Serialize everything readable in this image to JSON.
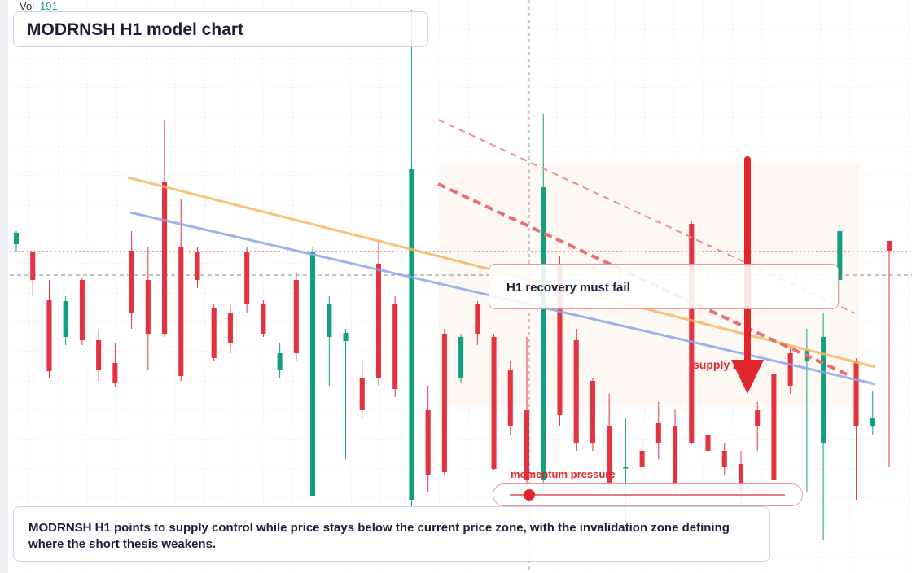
{
  "header": {
    "vol_label": "Vol",
    "vol_value": "191",
    "title": "MODRNSH H1 model chart"
  },
  "chart_data": {
    "type": "candlestick",
    "ylim": [
      0,
      704
    ],
    "up_color": "#129e83",
    "down_color": "#e5323f",
    "open": [
      404,
      394,
      335,
      290,
      360,
      286,
      258,
      396,
      360,
      480,
      400,
      394,
      326,
      320,
      394,
      330,
      250,
      360,
      94,
      290,
      285,
      240,
      380,
      330,
      90,
      200,
      294,
      240,
      330,
      290,
      250,
      200,
      114,
      380,
      286,
      236,
      180,
      130,
      150,
      184,
      180,
      429,
      170,
      150,
      134,
      200,
      244,
      270,
      260,
      160,
      360,
      260,
      180,
      408
    ],
    "close": [
      418,
      360,
      248,
      334,
      286,
      250,
      234,
      320,
      294,
      294,
      242,
      360,
      264,
      282,
      330,
      294,
      270,
      270,
      394,
      330,
      295,
      200,
      240,
      226,
      496,
      120,
      124,
      290,
      294,
      128,
      180,
      114,
      474,
      194,
      160,
      160,
      110,
      130,
      130,
      160,
      110,
      160,
      150,
      130,
      100,
      180,
      114,
      230,
      274,
      290,
      420,
      180,
      190,
      396
    ],
    "high": [
      420,
      396,
      360,
      340,
      362,
      300,
      282,
      420,
      400,
      557,
      460,
      400,
      330,
      330,
      400,
      336,
      282,
      370,
      400,
      340,
      300,
      260,
      410,
      340,
      692,
      230,
      300,
      294,
      334,
      294,
      260,
      290,
      564,
      390,
      300,
      240,
      220,
      190,
      160,
      210,
      200,
      432,
      190,
      160,
      150,
      210,
      250,
      280,
      300,
      320,
      429,
      264,
      224,
      408
    ],
    "low": [
      394,
      340,
      240,
      280,
      280,
      236,
      228,
      300,
      250,
      290,
      236,
      350,
      260,
      270,
      320,
      290,
      240,
      260,
      94,
      230,
      140,
      190,
      230,
      216,
      80,
      100,
      120,
      234,
      280,
      126,
      170,
      110,
      100,
      180,
      150,
      150,
      100,
      60,
      120,
      140,
      100,
      158,
      140,
      120,
      84,
      150,
      110,
      220,
      100,
      40,
      330,
      90,
      170,
      130
    ]
  },
  "annotations": {
    "callout": "H1 recovery must fail",
    "zone": "supply zone",
    "slider": "momentum pressure",
    "summary": "MODRNSH H1 points to supply control while price stays below the current price zone, with the invalidation zone defining where the short thesis weakens."
  }
}
